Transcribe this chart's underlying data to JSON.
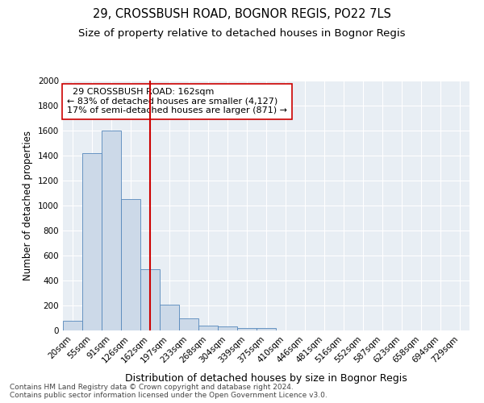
{
  "title": "29, CROSSBUSH ROAD, BOGNOR REGIS, PO22 7LS",
  "subtitle": "Size of property relative to detached houses in Bognor Regis",
  "xlabel": "Distribution of detached houses by size in Bognor Regis",
  "ylabel": "Number of detached properties",
  "bin_labels": [
    "20sqm",
    "55sqm",
    "91sqm",
    "126sqm",
    "162sqm",
    "197sqm",
    "233sqm",
    "268sqm",
    "304sqm",
    "339sqm",
    "375sqm",
    "410sqm",
    "446sqm",
    "481sqm",
    "516sqm",
    "552sqm",
    "587sqm",
    "623sqm",
    "658sqm",
    "694sqm",
    "729sqm"
  ],
  "bar_heights": [
    80,
    1420,
    1600,
    1050,
    490,
    205,
    100,
    40,
    30,
    22,
    18,
    0,
    0,
    0,
    0,
    0,
    0,
    0,
    0,
    0,
    0
  ],
  "bar_color": "#ccd9e8",
  "bar_edge_color": "#5588bb",
  "vline_x": 4,
  "vline_color": "#cc0000",
  "annotation_text": "  29 CROSSBUSH ROAD: 162sqm\n← 83% of detached houses are smaller (4,127)\n17% of semi-detached houses are larger (871) →",
  "annotation_box_color": "#ffffff",
  "annotation_box_edge_color": "#cc0000",
  "ylim": [
    0,
    2000
  ],
  "yticks": [
    0,
    200,
    400,
    600,
    800,
    1000,
    1200,
    1400,
    1600,
    1800,
    2000
  ],
  "background_color": "#e8eef4",
  "footer_text": "Contains HM Land Registry data © Crown copyright and database right 2024.\nContains public sector information licensed under the Open Government Licence v3.0.",
  "title_fontsize": 10.5,
  "subtitle_fontsize": 9.5,
  "xlabel_fontsize": 9,
  "ylabel_fontsize": 8.5,
  "tick_fontsize": 7.5,
  "annotation_fontsize": 8,
  "footer_fontsize": 6.5
}
